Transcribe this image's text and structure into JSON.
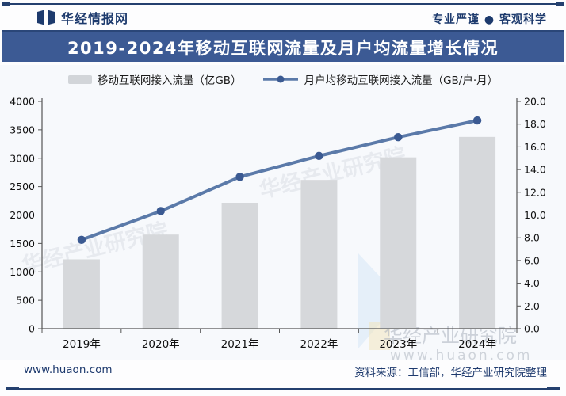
{
  "header": {
    "logo_text": "华经情报网",
    "slogan": "专业严谨 ● 客观科学"
  },
  "title": "2019-2024年移动互联网流量及月户均流量增长情况",
  "legend": {
    "bar_label": "移动互联网接入流量（亿GB）",
    "line_label": "月户均移动互联网接入流量（GB/户·月）"
  },
  "chart_data": {
    "type": "bar",
    "subtype": "bar+line dual-axis",
    "title": "2019-2024年移动互联网流量及月户均流量增长情况",
    "categories": [
      "2019年",
      "2020年",
      "2021年",
      "2022年",
      "2023年",
      "2024年"
    ],
    "series": [
      {
        "name": "移动互联网接入流量（亿GB）",
        "type": "bar",
        "axis": "left",
        "values": [
          1220,
          1656,
          2216,
          2618,
          3015,
          3375
        ],
        "color": "#d6d8db"
      },
      {
        "name": "月户均移动互联网接入流量（GB/户·月）",
        "type": "line",
        "axis": "right",
        "values": [
          7.82,
          10.35,
          13.36,
          15.2,
          16.85,
          18.32
        ],
        "color": "#5b7aa9",
        "marker_color": "#3b5a92"
      }
    ],
    "left_axis": {
      "min": 0,
      "max": 4000,
      "step": 500,
      "labels": [
        "0",
        "500",
        "1000",
        "1500",
        "2000",
        "2500",
        "3000",
        "3500",
        "4000"
      ]
    },
    "right_axis": {
      "min": 0,
      "max": 20,
      "step": 2,
      "labels": [
        "0.0",
        "2.0",
        "4.0",
        "6.0",
        "8.0",
        "10.0",
        "12.0",
        "14.0",
        "16.0",
        "18.0",
        "20.0"
      ]
    },
    "grid": false,
    "legend_position": "top"
  },
  "watermark": {
    "text": "华经产业研究院",
    "url": "www.huaon.com"
  },
  "footer": {
    "site": "www.huaon.com",
    "source": "资料来源：工信部，华经产业研究院整理"
  }
}
